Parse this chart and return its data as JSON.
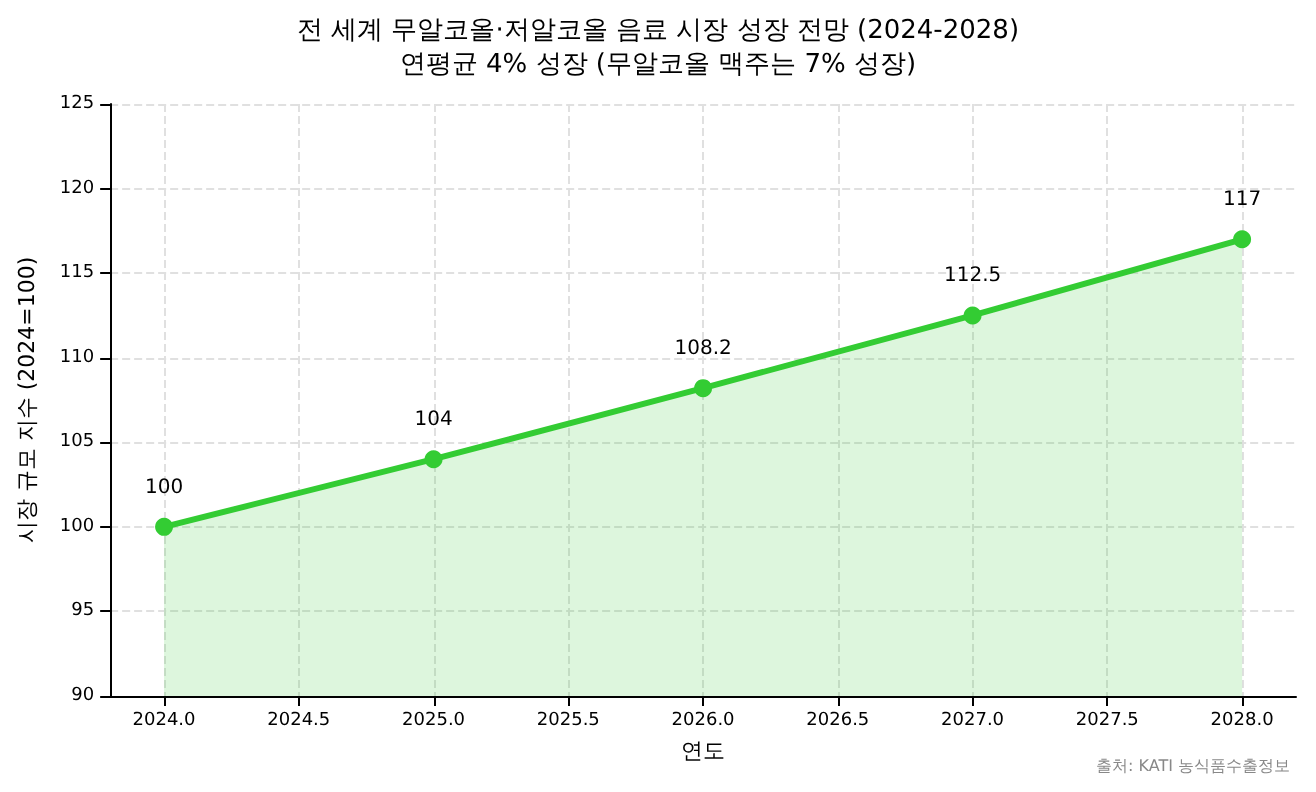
{
  "chart_data": {
    "type": "area",
    "title": "전 세계 무알코올·저알코올 음료 시장 성장 전망 (2024-2028)",
    "subtitle": "연평균 4% 성장 (무알코올 맥주는 7% 성장)",
    "xlabel": "연도",
    "ylabel": "시장 규모 지수 (2024=100)",
    "x": [
      2024,
      2025,
      2026,
      2027,
      2028
    ],
    "series": [
      {
        "color": "#33cc33",
        "values": [
          100,
          104,
          108.2,
          112.5,
          117
        ]
      }
    ],
    "xlim": [
      2023.8,
      2028.2
    ],
    "xticks": [
      {
        "value": 2024,
        "label": "2024.0"
      },
      {
        "value": 2024.5,
        "label": "2024.5"
      },
      {
        "value": 2025,
        "label": "2025.0"
      },
      {
        "value": 2025.5,
        "label": "2025.5"
      },
      {
        "value": 2026,
        "label": "2026.0"
      },
      {
        "value": 2026.5,
        "label": "2026.5"
      },
      {
        "value": 2027,
        "label": "2027.0"
      },
      {
        "value": 2027.5,
        "label": "2027.5"
      },
      {
        "value": 2028,
        "label": "2028.0"
      }
    ],
    "ylim": [
      90,
      125
    ],
    "yticks": [
      90,
      95,
      100,
      105,
      110,
      115,
      120,
      125
    ],
    "grid": true,
    "marker": "circle",
    "line_style": "solid",
    "data_labels": true,
    "annotations": [
      "출처: KATI 농식품수출정보"
    ]
  }
}
